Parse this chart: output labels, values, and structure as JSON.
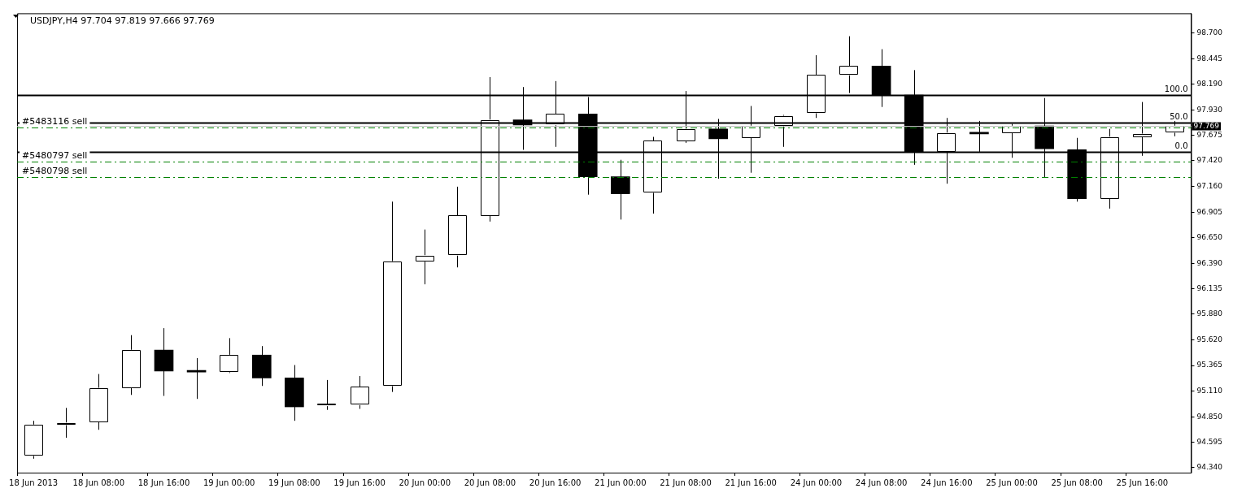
{
  "chart_data": {
    "type": "candlestick",
    "title": "USDJPY,H4 97.704 97.819 97.666 97.769",
    "categories": [
      "18 Jun 2013",
      null,
      "18 Jun 08:00",
      null,
      "18 Jun 16:00",
      null,
      "19 Jun 00:00",
      null,
      "19 Jun 08:00",
      null,
      "19 Jun 16:00",
      null,
      "20 Jun 00:00",
      null,
      "20 Jun 08:00",
      null,
      "20 Jun 16:00",
      null,
      "21 Jun 00:00",
      null,
      "21 Jun 08:00",
      null,
      "21 Jun 16:00",
      null,
      "24 Jun 00:00",
      null,
      "24 Jun 08:00",
      null,
      "24 Jun 16:00",
      null,
      "25 Jun 00:00",
      null,
      "25 Jun 08:00",
      null,
      "25 Jun 16:00",
      null
    ],
    "ohlc": [
      [
        94.46,
        94.81,
        94.43,
        94.77
      ],
      [
        94.77,
        94.94,
        94.64,
        94.79
      ],
      [
        94.8,
        95.28,
        94.72,
        95.14
      ],
      [
        95.14,
        95.67,
        95.07,
        95.52
      ],
      [
        95.52,
        95.74,
        95.06,
        95.31
      ],
      [
        95.31,
        95.44,
        95.03,
        95.3
      ],
      [
        95.3,
        95.64,
        95.29,
        95.47
      ],
      [
        95.47,
        95.56,
        95.16,
        95.24
      ],
      [
        95.24,
        95.37,
        94.81,
        94.95
      ],
      [
        94.96,
        95.22,
        94.92,
        94.98
      ],
      [
        94.97,
        95.26,
        94.93,
        95.15
      ],
      [
        95.16,
        97.01,
        95.1,
        96.41
      ],
      [
        96.41,
        96.73,
        96.18,
        96.47
      ],
      [
        96.47,
        97.16,
        96.35,
        96.87
      ],
      [
        96.87,
        98.26,
        96.81,
        97.83
      ],
      [
        97.83,
        98.16,
        97.53,
        97.78
      ],
      [
        97.78,
        98.22,
        97.56,
        97.89
      ],
      [
        97.89,
        98.06,
        97.08,
        97.26
      ],
      [
        97.26,
        97.43,
        96.83,
        97.09
      ],
      [
        97.1,
        97.66,
        96.89,
        97.62
      ],
      [
        97.62,
        98.12,
        97.6,
        97.74
      ],
      [
        97.74,
        97.84,
        97.24,
        97.64
      ],
      [
        97.65,
        97.97,
        97.3,
        97.77
      ],
      [
        97.77,
        97.88,
        97.56,
        97.87
      ],
      [
        97.9,
        98.48,
        97.85,
        98.28
      ],
      [
        98.28,
        98.67,
        98.1,
        98.37
      ],
      [
        98.37,
        98.54,
        97.96,
        98.08
      ],
      [
        98.08,
        98.33,
        97.38,
        97.51
      ],
      [
        97.51,
        97.85,
        97.19,
        97.7
      ],
      [
        97.7,
        97.82,
        97.51,
        97.69
      ],
      [
        97.7,
        97.79,
        97.45,
        97.77
      ],
      [
        97.77,
        98.05,
        97.25,
        97.54
      ],
      [
        97.53,
        97.65,
        97.01,
        97.04
      ],
      [
        97.04,
        97.74,
        96.94,
        97.66
      ],
      [
        97.66,
        98.01,
        97.47,
        97.69
      ],
      [
        97.704,
        97.819,
        97.666,
        97.769
      ]
    ],
    "color": "#000000",
    "colors": [
      "#ffffff",
      "#ffffff",
      "#ffffff",
      "#ffffff",
      "#000000",
      "#000000",
      "#ffffff",
      "#000000",
      "#000000",
      "#ffffff",
      "#ffffff",
      "#ffffff",
      "#ffffff",
      "#ffffff",
      "#ffffff",
      "#000000",
      "#ffffff",
      "#000000",
      "#000000",
      "#ffffff",
      "#ffffff",
      "#000000",
      "#ffffff",
      "#ffffff",
      "#ffffff",
      "#ffffff",
      "#000000",
      "#000000",
      "#ffffff",
      "#000000",
      "#ffffff",
      "#000000",
      "#000000",
      "#ffffff",
      "#ffffff",
      "#ffffff"
    ],
    "ylim": [
      94.29,
      98.9
    ],
    "yticks": [
      {
        "value": 94.34,
        "label": "94.340"
      },
      94.595,
      {
        "value": 94.85,
        "label": "94.850"
      },
      {
        "value": 95.11,
        "label": "95.110"
      },
      95.365,
      {
        "value": 95.62,
        "label": "95.620"
      },
      {
        "value": 95.88,
        "label": "95.880"
      },
      96.135,
      {
        "value": 96.39,
        "label": "96.390"
      },
      {
        "value": 96.65,
        "label": "96.650"
      },
      96.905,
      {
        "value": 97.16,
        "label": "97.160"
      },
      {
        "value": 97.42,
        "label": "97.420"
      },
      97.675,
      {
        "value": 97.93,
        "label": "97.930"
      },
      {
        "value": 98.19,
        "label": "98.190"
      },
      98.445,
      {
        "value": 98.7,
        "label": "98.700"
      }
    ],
    "ref_lines": [
      {
        "axis": "y",
        "value": 97.75,
        "label": "#5483116 sell",
        "color": "#008000",
        "line_style": "dashdot"
      },
      {
        "axis": "y",
        "value": 97.41,
        "label": "#5480797 sell",
        "color": "#008000",
        "line_style": "dashdot"
      },
      {
        "axis": "y",
        "value": 97.26,
        "label": "#5480798 sell",
        "color": "#008000",
        "line_style": "dashdot"
      },
      {
        "axis": "y",
        "value": 98.08,
        "color": "#000000",
        "line_style": "solid"
      },
      {
        "axis": "y",
        "value": 97.8,
        "color": "#000000",
        "line_style": "solid"
      },
      {
        "axis": "y",
        "value": 97.51,
        "color": "#000000",
        "line_style": "solid"
      },
      {
        "axis": "y",
        "value": 97.769,
        "label": "97.769",
        "color": "#c0c0c0",
        "line_style": "solid"
      }
    ],
    "annotations": [
      {
        "text": "100.0",
        "y": 98.08
      },
      {
        "text": "50.0",
        "y": 97.8
      },
      {
        "text": "0.0",
        "y": 97.51
      }
    ],
    "grid": false
  }
}
